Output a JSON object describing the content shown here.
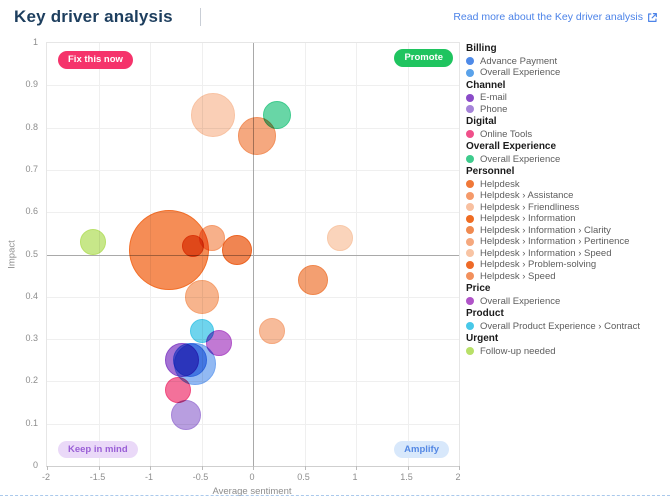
{
  "header": {
    "title": "Key driver analysis",
    "read_more_label": "Read more about the Key driver analysis",
    "link_color": "#4c83e8"
  },
  "chart_data": {
    "type": "scatter",
    "title": "Key driver analysis",
    "xlabel": "Average sentiment",
    "ylabel": "Impact",
    "xlim": [
      -2,
      2
    ],
    "ylim": [
      0,
      1
    ],
    "xticks": [
      "-2",
      "-1.5",
      "-1",
      "-0.5",
      "0",
      "0.5",
      "1",
      "1.5",
      "2"
    ],
    "yticks": [
      "0",
      "0.1",
      "0.2",
      "0.3",
      "0.4",
      "0.5",
      "0.6",
      "0.7",
      "0.8",
      "0.9",
      "1"
    ],
    "reference_lines": {
      "x": 0,
      "y": 0.5
    },
    "grid": true,
    "legend_position": "right",
    "quadrants": [
      {
        "key": "top-left",
        "label": "Fix this now",
        "bg": "#f5336b",
        "fg": "#ffffff"
      },
      {
        "key": "top-right",
        "label": "Promote",
        "bg": "#1fc45f",
        "fg": "#ffffff"
      },
      {
        "key": "bottom-left",
        "label": "Keep in mind",
        "bg": "#ead9f8",
        "fg": "#9a5fd6"
      },
      {
        "key": "bottom-right",
        "label": "Amplify",
        "bg": "#d8e8fb",
        "fg": "#5488e4"
      }
    ],
    "points": [
      {
        "category": "Personnel",
        "label": "Helpdesk",
        "sentiment": -0.82,
        "impact": 0.51,
        "r": 40,
        "color": "#f26e28"
      },
      {
        "category": "Personnel",
        "label": "Helpdesk › Friendliness",
        "sentiment": -0.39,
        "impact": 0.83,
        "r": 22,
        "color": "#f8c2a2"
      },
      {
        "category": "Personnel",
        "label": "Helpdesk › Speed",
        "sentiment": 0.04,
        "impact": 0.78,
        "r": 19,
        "color": "#f2905c"
      },
      {
        "category": "Billing",
        "label": "Overall Experience",
        "sentiment": -0.56,
        "impact": 0.24,
        "r": 21,
        "color": "#74a6f0"
      },
      {
        "category": "Billing",
        "label": "Advance Payment",
        "sentiment": -0.61,
        "impact": 0.25,
        "r": 17,
        "color": "#4e8ae8"
      },
      {
        "category": "Channel",
        "label": "E-mail",
        "sentiment": -0.69,
        "impact": 0.25,
        "r": 17,
        "color": "#8a4bc8"
      },
      {
        "category": "Personnel",
        "label": "Helpdesk › Assistance",
        "sentiment": -0.5,
        "impact": 0.4,
        "r": 17,
        "color": "#f5a06e"
      },
      {
        "category": "Personnel",
        "label": "Helpdesk › Problem-solving",
        "sentiment": -0.16,
        "impact": 0.51,
        "r": 15,
        "color": "#ec6322"
      },
      {
        "category": "Personnel",
        "label": "Helpdesk › Information › Clarity",
        "sentiment": 0.58,
        "impact": 0.44,
        "r": 15,
        "color": "#f0854a"
      },
      {
        "category": "Personnel",
        "label": "Helpdesk › Information",
        "sentiment": -0.58,
        "impact": 0.52,
        "r": 11,
        "color": "#e35f1c"
      },
      {
        "category": "Personnel",
        "label": "Helpdesk › Assistance",
        "sentiment": -0.4,
        "impact": 0.54,
        "r": 13,
        "color": "#f59a6a"
      },
      {
        "category": "Personnel",
        "label": "Helpdesk › Information › Speed",
        "sentiment": 0.84,
        "impact": 0.54,
        "r": 13,
        "color": "#f8c8a8"
      },
      {
        "category": "Personnel",
        "label": "Helpdesk › Information › Pertinence",
        "sentiment": 0.18,
        "impact": 0.32,
        "r": 13,
        "color": "#f5a87e"
      },
      {
        "category": "Urgent",
        "label": "Follow-up needed",
        "sentiment": -1.55,
        "impact": 0.53,
        "r": 13,
        "color": "#b8e068"
      },
      {
        "category": "Overall Experience",
        "label": "Overall Experience",
        "sentiment": 0.23,
        "impact": 0.83,
        "r": 14,
        "color": "#3ecb8d"
      },
      {
        "category": "Channel",
        "label": "Phone",
        "sentiment": -0.65,
        "impact": 0.12,
        "r": 15,
        "color": "#a583d8"
      },
      {
        "category": "Digital",
        "label": "Online Tools",
        "sentiment": -0.73,
        "impact": 0.18,
        "r": 13,
        "color": "#f04a7e"
      },
      {
        "category": "Product",
        "label": "Overall Product Experience › Contract",
        "sentiment": -0.5,
        "impact": 0.32,
        "r": 12,
        "color": "#48c8e8"
      },
      {
        "category": "Price",
        "label": "Overall Experience",
        "sentiment": -0.33,
        "impact": 0.29,
        "r": 13,
        "color": "#b054c8"
      }
    ]
  },
  "legend": {
    "groups": [
      {
        "name": "Billing",
        "items": [
          {
            "label": "Advance Payment",
            "color": "#4e8ae8"
          },
          {
            "label": "Overall Experience",
            "color": "#5aa2ea"
          }
        ]
      },
      {
        "name": "Channel",
        "items": [
          {
            "label": "E-mail",
            "color": "#8a4bc8"
          },
          {
            "label": "Phone",
            "color": "#a583d8"
          }
        ]
      },
      {
        "name": "Digital",
        "items": [
          {
            "label": "Online Tools",
            "color": "#f0508a"
          }
        ]
      },
      {
        "name": "Overall Experience",
        "items": [
          {
            "label": "Overall Experience",
            "color": "#3ecb8d"
          }
        ]
      },
      {
        "name": "Personnel",
        "items": [
          {
            "label": "Helpdesk",
            "color": "#f07838"
          },
          {
            "label": "Helpdesk › Assistance",
            "color": "#f59a6a"
          },
          {
            "label": "Helpdesk › Friendliness",
            "color": "#f8c0a0"
          },
          {
            "label": "Helpdesk › Information",
            "color": "#ef6c22"
          },
          {
            "label": "Helpdesk › Information › Clarity",
            "color": "#f08a50"
          },
          {
            "label": "Helpdesk › Information › Pertinence",
            "color": "#f5a87e"
          },
          {
            "label": "Helpdesk › Information › Speed",
            "color": "#f8c4a4"
          },
          {
            "label": "Helpdesk › Problem-solving",
            "color": "#ee6a28"
          },
          {
            "label": "Helpdesk › Speed",
            "color": "#f2905c"
          }
        ]
      },
      {
        "name": "Price",
        "items": [
          {
            "label": "Overall Experience",
            "color": "#b054c8"
          }
        ]
      },
      {
        "name": "Product",
        "items": [
          {
            "label": "Overall Product Experience › Contract",
            "color": "#48c8e8"
          }
        ]
      },
      {
        "name": "Urgent",
        "items": [
          {
            "label": "Follow-up needed",
            "color": "#b8e068"
          }
        ]
      }
    ]
  }
}
